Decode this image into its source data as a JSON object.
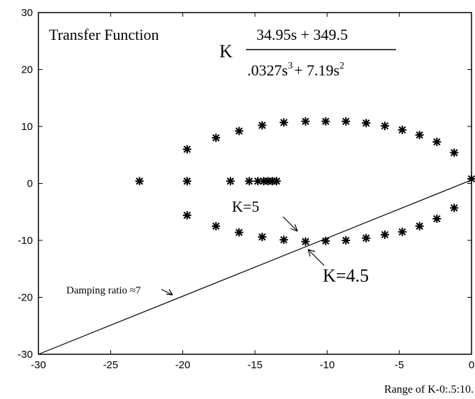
{
  "chart_data": {
    "type": "scatter",
    "xlim": [
      -30,
      0
    ],
    "ylim": [
      -30,
      30
    ],
    "xticks": [
      "-30",
      "-25",
      "-20",
      "-15",
      "-10",
      "-5",
      "0"
    ],
    "yticks": [
      "30",
      "20",
      "10",
      "0",
      "-10",
      "-20",
      "-30"
    ],
    "grid": false,
    "marker": "*",
    "points": {
      "upper_branch": [
        [
          -19.7,
          6
        ],
        [
          -17.7,
          8
        ],
        [
          -16.1,
          9.2
        ],
        [
          -14.5,
          10.2
        ],
        [
          -13,
          10.7
        ],
        [
          -11.5,
          10.9
        ],
        [
          -10.1,
          10.9
        ],
        [
          -8.7,
          10.9
        ],
        [
          -7.3,
          10.6
        ],
        [
          -6,
          10.1
        ],
        [
          -4.8,
          9.4
        ],
        [
          -3.6,
          8.5
        ],
        [
          -2.4,
          7.3
        ],
        [
          -1.2,
          5.4
        ],
        [
          0,
          0.8
        ]
      ],
      "lower_branch": [
        [
          -19.7,
          -5.6
        ],
        [
          -17.7,
          -7.5
        ],
        [
          -16.1,
          -8.6
        ],
        [
          -14.5,
          -9.4
        ],
        [
          -13,
          -9.9
        ],
        [
          -11.5,
          -10.2
        ],
        [
          -10.1,
          -10.1
        ],
        [
          -8.7,
          -10
        ],
        [
          -7.3,
          -9.6
        ],
        [
          -6,
          -9
        ],
        [
          -4.8,
          -8.5
        ],
        [
          -3.6,
          -7.5
        ],
        [
          -2.4,
          -6.2
        ],
        [
          -1.2,
          -4.3
        ]
      ],
      "real_axis": [
        [
          -23,
          0.4
        ],
        [
          -19.7,
          0.4
        ],
        [
          -16.7,
          0.4
        ],
        [
          -15.4,
          0.4
        ],
        [
          -14.8,
          0.4
        ],
        [
          -14.4,
          0.4
        ],
        [
          -14.1,
          0.4
        ],
        [
          -13.8,
          0.4
        ],
        [
          -13.5,
          0.4
        ]
      ]
    },
    "damping_line": {
      "from": [
        -30,
        -30
      ],
      "to": [
        0,
        0.6
      ]
    },
    "annotations": {
      "transfer_function_label": "Transfer Function",
      "gain": "K",
      "numerator": "34.95s + 349.5",
      "denominator_part1": ".0327s",
      "denominator_exp1": "3",
      "denominator_part2": "+ 7.19s",
      "denominator_exp2": "2",
      "damping": "Damping ratio ≈7",
      "k5": "K=5",
      "k45": "K=4.5",
      "range": "Range of K-0:.5:10."
    }
  }
}
